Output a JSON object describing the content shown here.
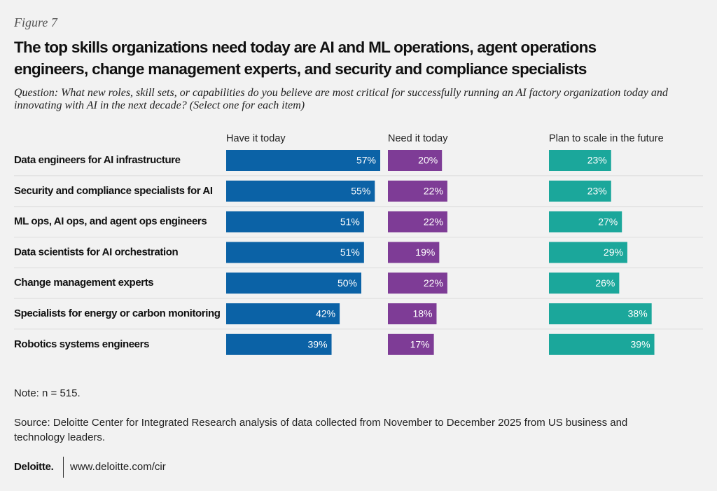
{
  "chart_data": {
    "type": "bar",
    "orientation": "horizontal",
    "figure_label": "Figure 7",
    "title": "The top skills organizations need today are AI and ML operations, agent operations engineers, change management experts, and security and compliance specialists",
    "subtitle": "Question: What new roles, skill sets, or capabilities do you believe are most critical for successfully running an AI factory organization today and innovating with AI in the next decade? (Select one for each item)",
    "categories": [
      "Data engineers for AI infrastructure",
      "Security and compliance specialists for AI",
      "ML ops, AI ops, and agent ops engineers",
      "Data scientists for AI orchestration",
      "Change management experts",
      "Specialists for energy or carbon monitoring",
      "Robotics systems engineers"
    ],
    "series": [
      {
        "name": "Have it today",
        "color": "#0b62a6",
        "values": [
          57,
          55,
          51,
          51,
          50,
          42,
          39
        ],
        "value_labels": [
          "57%",
          "55%",
          "51%",
          "51%",
          "50%",
          "42%",
          "39%"
        ]
      },
      {
        "name": "Need it today",
        "color": "#7e3c96",
        "values": [
          20,
          22,
          22,
          19,
          22,
          18,
          17
        ],
        "value_labels": [
          "20%",
          "22%",
          "22%",
          "19%",
          "22%",
          "18%",
          "17%"
        ]
      },
      {
        "name": "Plan to scale in the future",
        "color": "#1ba79b",
        "values": [
          23,
          23,
          27,
          29,
          26,
          38,
          39
        ],
        "value_labels": [
          "23%",
          "23%",
          "27%",
          "29%",
          "26%",
          "38%",
          "39%"
        ]
      }
    ],
    "note": "Note: n = 515.",
    "source": "Source: Deloitte Center for Integrated Research analysis of data collected from November to December 2025 from US business and technology leaders.",
    "brand": "Deloitte.",
    "url": "www.deloitte.com/cir"
  }
}
